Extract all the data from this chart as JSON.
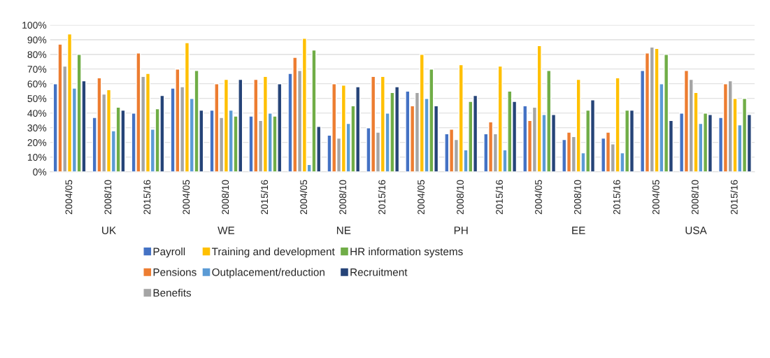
{
  "chart_data": {
    "type": "bar",
    "categories": [
      "2004/05",
      "2008/10",
      "2015/16",
      "2004/05",
      "2008/10",
      "2015/16",
      "2004/05",
      "2008/10",
      "2015/16",
      "2004/05",
      "2008/10",
      "2015/16",
      "2004/05",
      "2008/10",
      "2015/16",
      "2004/05",
      "2008/10",
      "2015/16"
    ],
    "annotations": [
      "UK",
      "WE",
      "NE",
      "PH",
      "EE",
      "USA"
    ],
    "series": [
      {
        "name": "Payroll",
        "color": "#4472c4",
        "values": [
          60,
          37,
          40,
          57,
          42,
          38,
          67,
          25,
          30,
          55,
          26,
          26,
          45,
          22,
          23,
          69,
          40,
          37
        ]
      },
      {
        "name": "Pensions",
        "color": "#ed7d31",
        "values": [
          87,
          64,
          81,
          70,
          60,
          63,
          78,
          60,
          65,
          45,
          29,
          34,
          35,
          27,
          27,
          81,
          69,
          60
        ]
      },
      {
        "name": "Benefits",
        "color": "#a5a5a5",
        "values": [
          72,
          53,
          65,
          58,
          37,
          35,
          69,
          23,
          27,
          54,
          22,
          26,
          44,
          24,
          19,
          85,
          63,
          62
        ]
      },
      {
        "name": "Training and development",
        "color": "#ffc000",
        "values": [
          94,
          56,
          67,
          88,
          63,
          65,
          91,
          59,
          65,
          80,
          73,
          72,
          86,
          63,
          64,
          84,
          54,
          50
        ]
      },
      {
        "name": "Outplacement/reduction",
        "color": "#5b9bd5",
        "values": [
          57,
          28,
          29,
          50,
          42,
          40,
          5,
          33,
          40,
          50,
          15,
          15,
          39,
          13,
          13,
          60,
          33,
          32
        ]
      },
      {
        "name": "HR information systems",
        "color": "#70ad47",
        "values": [
          80,
          44,
          43,
          69,
          38,
          38,
          83,
          45,
          54,
          70,
          48,
          55,
          69,
          42,
          42,
          80,
          40,
          50
        ]
      },
      {
        "name": "Recruitment",
        "color": "#264478",
        "values": [
          62,
          42,
          52,
          42,
          63,
          60,
          31,
          58,
          58,
          45,
          52,
          48,
          39,
          49,
          42,
          35,
          39,
          39
        ]
      }
    ],
    "ylim": [
      0,
      100
    ],
    "yticks": [
      {
        "value": 0,
        "label": "0%"
      },
      {
        "value": 10,
        "label": "10%"
      },
      {
        "value": 20,
        "label": "20%"
      },
      {
        "value": 30,
        "label": "30%"
      },
      {
        "value": 40,
        "label": "40%"
      },
      {
        "value": 50,
        "label": "50%"
      },
      {
        "value": 60,
        "label": "60%"
      },
      {
        "value": 70,
        "label": "70%"
      },
      {
        "value": 80,
        "label": "80%"
      },
      {
        "value": 90,
        "label": "90%"
      },
      {
        "value": 100,
        "label": "100%"
      }
    ],
    "grid": "y",
    "legend": "bottom"
  }
}
